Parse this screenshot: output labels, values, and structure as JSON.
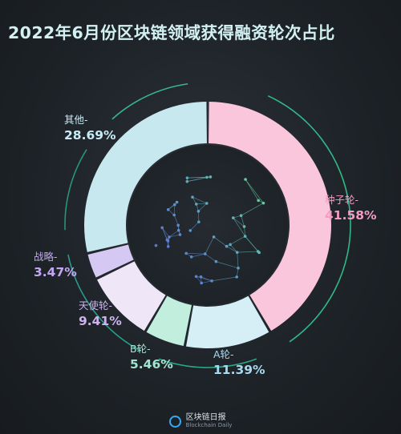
{
  "title": "2022年6月份区块链领域获得融资轮次占比",
  "footer": {
    "brand_cn": "区块链日报",
    "brand_en": "Blockchain Daily"
  },
  "chart_data": {
    "type": "pie",
    "title": "2022年6月份区块链领域获得融资轮次占比",
    "unit": "%",
    "slices": [
      {
        "label": "种子轮-",
        "value": 41.58,
        "display": "41.58%",
        "color": "#f9c6dc",
        "label_color": "#f59cc3"
      },
      {
        "label": "A轮-",
        "value": 11.39,
        "display": "11.39%",
        "color": "#d6eef6",
        "label_color": "#a8d9ef"
      },
      {
        "label": "B轮-",
        "value": 5.46,
        "display": "5.46%",
        "color": "#c2eedd",
        "label_color": "#a3e4d0"
      },
      {
        "label": "天使轮-",
        "value": 9.41,
        "display": "9.41%",
        "color": "#efe6f8",
        "label_color": "#cdb3ef"
      },
      {
        "label": "战略-",
        "value": 3.47,
        "display": "3.47%",
        "color": "#d5c8f2",
        "label_color": "#c1a6f2"
      },
      {
        "label": "其他-",
        "value": 28.69,
        "display": "28.69%",
        "color": "#c8e8f0",
        "label_color": "#c7ecf5"
      }
    ]
  }
}
